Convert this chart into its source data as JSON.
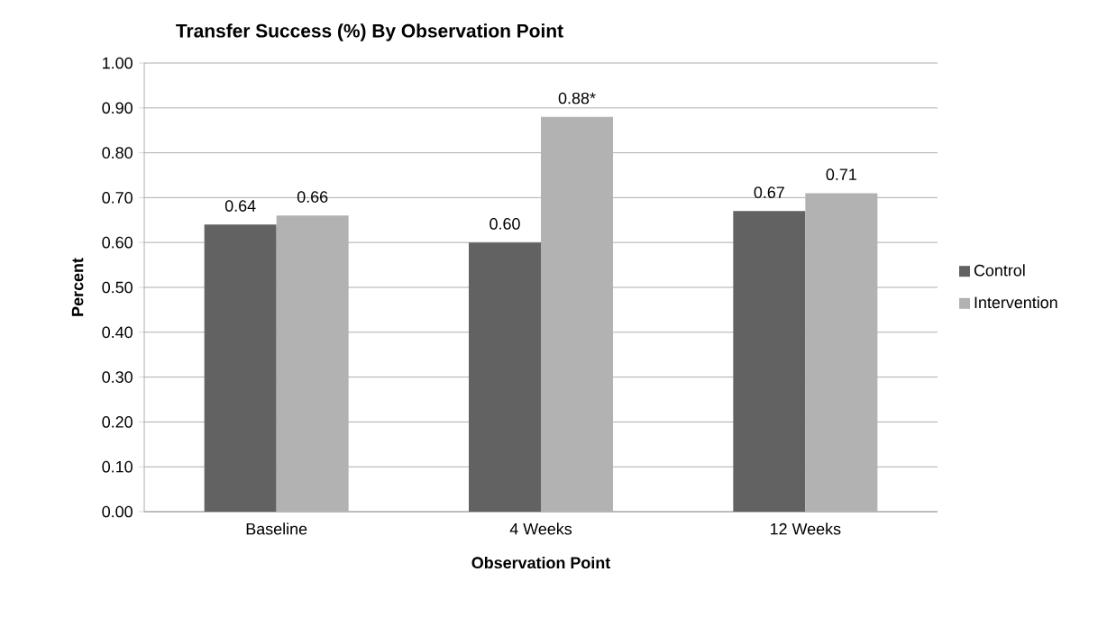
{
  "chart_data": {
    "type": "bar",
    "title": "Transfer Success (%) By Observation Point",
    "xlabel": "Observation Point",
    "ylabel": "Percent",
    "categories": [
      "Baseline",
      "4 Weeks",
      "12 Weeks"
    ],
    "series": [
      {
        "name": "Control",
        "color": "#626262",
        "values": [
          0.64,
          0.6,
          0.67
        ],
        "value_labels": [
          "0.64",
          "0.60",
          "0.67"
        ]
      },
      {
        "name": "Intervention",
        "color": "#b2b2b2",
        "values": [
          0.66,
          0.88,
          0.71
        ],
        "value_labels": [
          "0.66",
          "0.88*",
          "0.71"
        ]
      }
    ],
    "ylim": [
      0,
      1
    ],
    "yticks": [
      {
        "value": 0,
        "label": "0.00"
      },
      {
        "value": 0.1,
        "label": "0.10"
      },
      {
        "value": 0.2,
        "label": "0.20"
      },
      {
        "value": 0.3,
        "label": "0.30"
      },
      {
        "value": 0.4,
        "label": "0.40"
      },
      {
        "value": 0.5,
        "label": "0.50"
      },
      {
        "value": 0.6,
        "label": "0.60"
      },
      {
        "value": 0.7,
        "label": "0.70"
      },
      {
        "value": 0.8,
        "label": "0.80"
      },
      {
        "value": 0.9,
        "label": "0.90"
      },
      {
        "value": 1,
        "label": "1.00"
      }
    ],
    "grid": "y",
    "legend": "right"
  }
}
